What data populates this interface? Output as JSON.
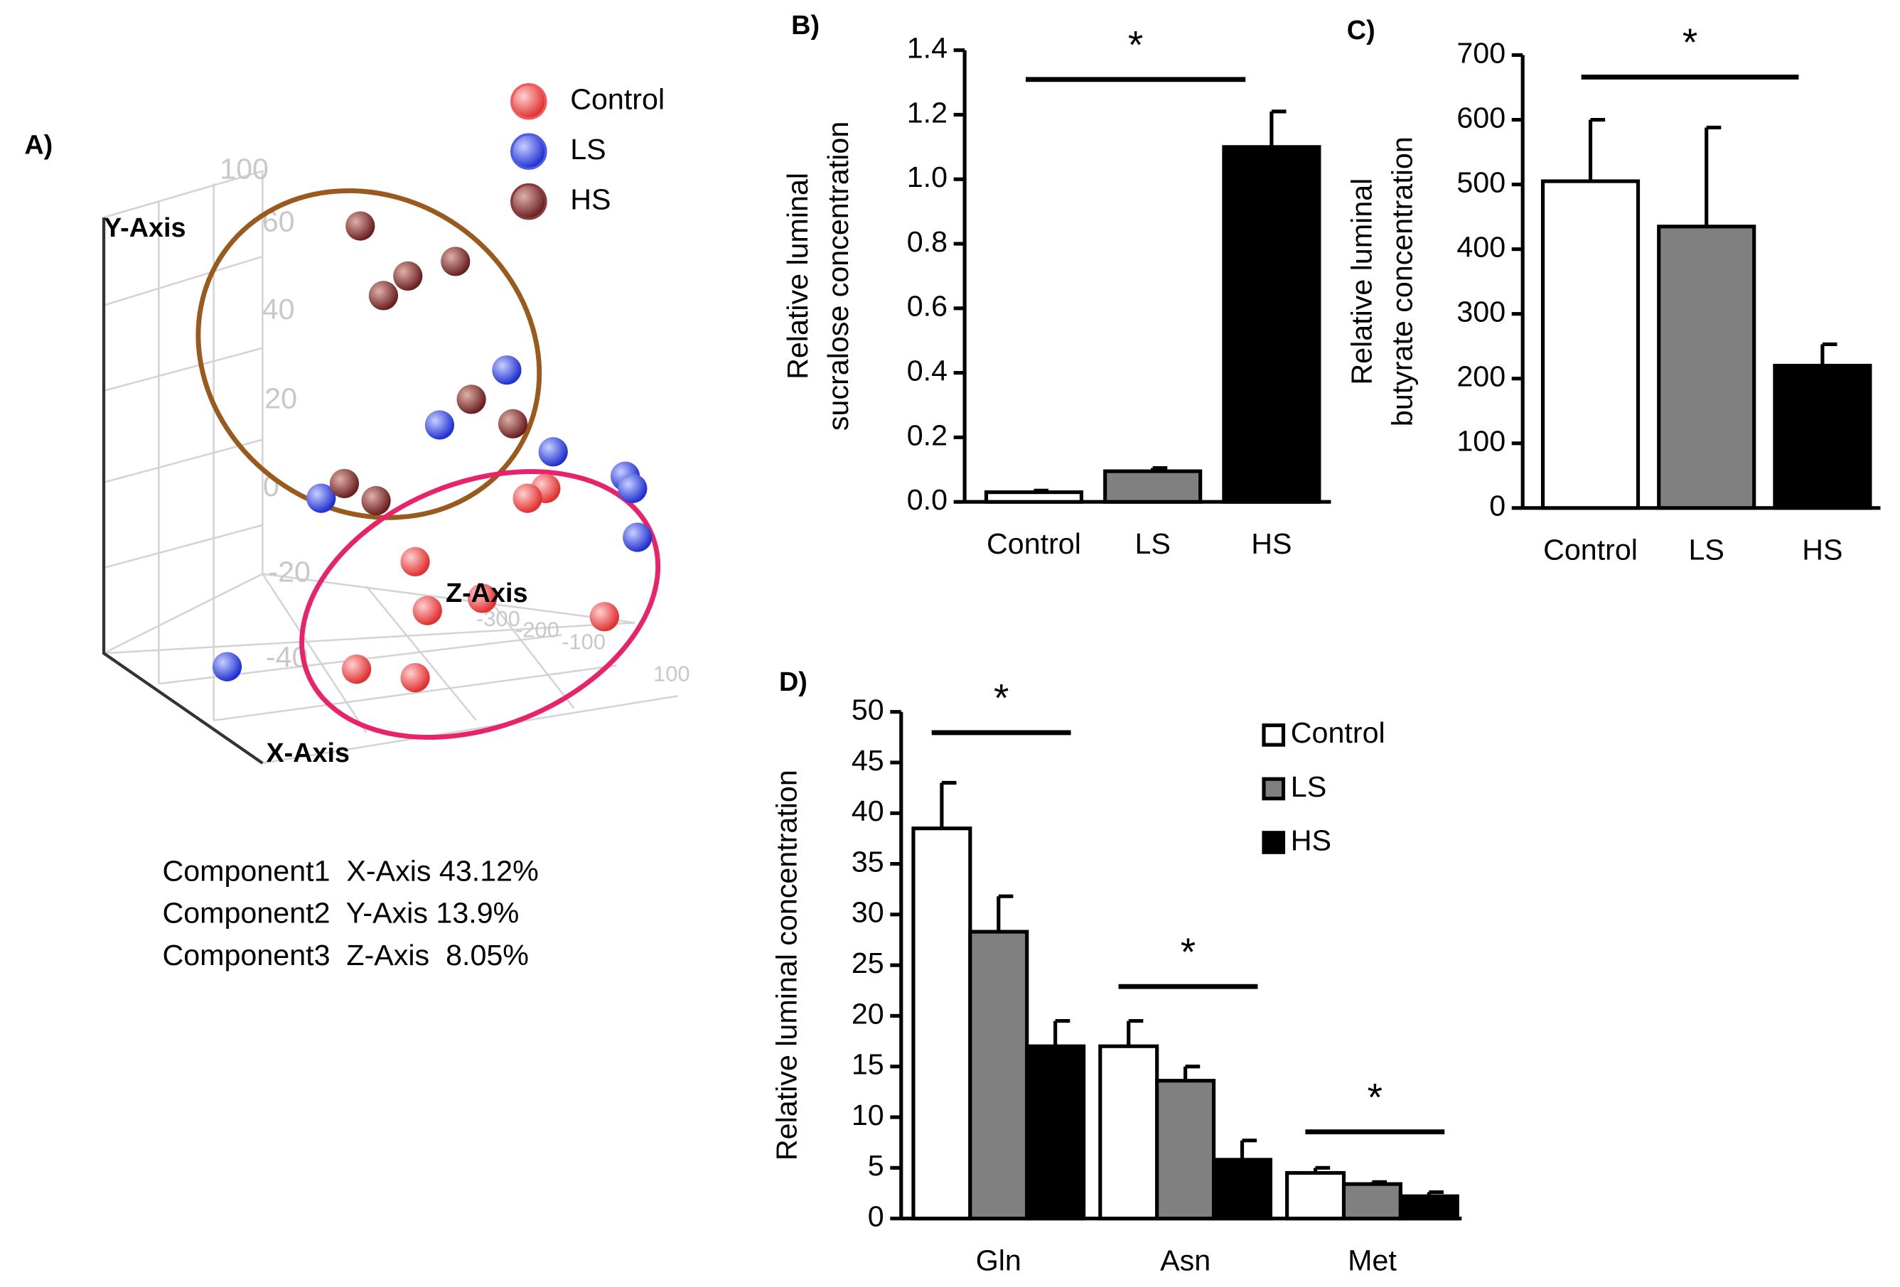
{
  "chart_data": [
    {
      "type": "scatter3d",
      "title": "A)",
      "series": [
        {
          "name": "Control",
          "color": "#f05a5a"
        },
        {
          "name": "LS",
          "color": "#4a5ee8"
        },
        {
          "name": "HS",
          "color": "#8a3a3a"
        }
      ],
      "axis_labels": [
        "X-Axis",
        "Y-Axis",
        "Z-Axis"
      ],
      "yticks": [
        100,
        60,
        40,
        20,
        0,
        -20,
        -40
      ],
      "zticks": [
        -300,
        -200,
        -100,
        100
      ],
      "annotations": [
        "Component1  X-Axis 43.12%",
        "Component2  Y-Axis 13.9%",
        "Component3  Z-Axis  8.05%"
      ]
    },
    {
      "type": "bar",
      "title": "B)",
      "ylabel": [
        "Relative luminal",
        "sucralose concentration"
      ],
      "categories": [
        "Control",
        "LS",
        "HS"
      ],
      "values": [
        0.03,
        0.095,
        1.1
      ],
      "errors": [
        0.005,
        0.01,
        0.11
      ],
      "colors": [
        "#ffffff",
        "#808080",
        "#000000"
      ],
      "ylim": [
        0,
        1.4
      ],
      "yticks": [
        {
          "value": 0,
          "label": "0.0"
        },
        0.2,
        0.4,
        0.6,
        0.8,
        {
          "value": 1,
          "label": "1.0"
        },
        1.2,
        1.4
      ],
      "annotations": [
        "*"
      ]
    },
    {
      "type": "bar",
      "title": "C)",
      "ylabel": [
        "Relative luminal",
        "butyrate concentration"
      ],
      "categories": [
        "Control",
        "LS",
        "HS"
      ],
      "values": [
        505,
        435,
        220
      ],
      "errors": [
        95,
        153,
        33
      ],
      "colors": [
        "#ffffff",
        "#808080",
        "#000000"
      ],
      "ylim": [
        0,
        700
      ],
      "yticks": [
        0,
        100,
        200,
        300,
        400,
        500,
        600,
        700
      ],
      "annotations": [
        "*"
      ]
    },
    {
      "type": "grouped_bar",
      "title": "D)",
      "ylabel": "Relative luminal concentration",
      "categories": [
        "Gln",
        "Asn",
        "Met"
      ],
      "series": [
        {
          "name": "Control",
          "color": "#ffffff",
          "values": [
            38.5,
            17,
            4.5
          ],
          "errors": [
            4.5,
            2.5,
            0.5
          ]
        },
        {
          "name": "LS",
          "color": "#808080",
          "values": [
            28.3,
            13.6,
            3.4
          ],
          "errors": [
            3.5,
            1.4,
            0.2
          ]
        },
        {
          "name": "HS",
          "color": "#000000",
          "values": [
            17,
            5.8,
            2.2
          ],
          "errors": [
            2.5,
            1.9,
            0.4
          ]
        }
      ],
      "ylim": [
        0,
        50
      ],
      "yticks": [
        0,
        5,
        10,
        15,
        20,
        25,
        30,
        35,
        40,
        45,
        50
      ],
      "annotations": [
        "*",
        "*",
        "*"
      ]
    }
  ]
}
